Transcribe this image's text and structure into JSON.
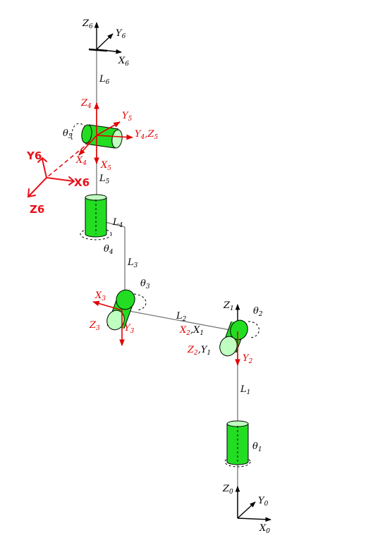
{
  "frames": {
    "f0": {
      "z": "Z",
      "z_sub": "0",
      "y": "Y",
      "y_sub": "0",
      "x": "X",
      "x_sub": "0"
    },
    "f6": {
      "z": "Z",
      "z_sub": "6",
      "y": "Y",
      "y_sub": "6",
      "x": "X",
      "x_sub": "6"
    },
    "f1": {
      "z": "Z",
      "z_sub": "1",
      "x": "X",
      "x_sub": "1",
      "y": "Y",
      "y_sub": "1"
    },
    "f2": {
      "x": "X",
      "x_sub": "2",
      "z": "Z",
      "z_sub": "2",
      "y": "Y",
      "y_sub": "2"
    },
    "f3": {
      "x": "X",
      "x_sub": "3",
      "z": "Z",
      "z_sub": "3",
      "y": "Y",
      "y_sub": "3"
    },
    "f4": {
      "z": "Z",
      "z_sub": "4",
      "x": "X",
      "x_sub": "4",
      "y": "Y",
      "y_sub": "4"
    },
    "f5": {
      "y": "Y",
      "y_sub": "5",
      "x": "X",
      "x_sub": "5",
      "z": "Z",
      "z_sub": "5"
    }
  },
  "links": {
    "l1": {
      "sym": "L",
      "sub": "1"
    },
    "l2": {
      "sym": "L",
      "sub": "2"
    },
    "l3": {
      "sym": "L",
      "sub": "3"
    },
    "l4": {
      "sym": "L",
      "sub": "4"
    },
    "l5": {
      "sym": "L",
      "sub": "5"
    },
    "l6": {
      "sym": "L",
      "sub": "6"
    }
  },
  "joints": {
    "j1": {
      "sym": "θ",
      "sub": "1"
    },
    "j2": {
      "sym": "θ",
      "sub": "2"
    },
    "j3": {
      "sym": "θ",
      "sub": "3"
    },
    "j4": {
      "sym": "θ",
      "sub": "4"
    },
    "j5": {
      "sym": "θ",
      "sub": "5"
    }
  },
  "handwritten": {
    "y6": "Y6",
    "x6": "X6",
    "z6": "Z6"
  },
  "colors": {
    "joint": "#22dd22",
    "cap": "#bfffbf",
    "annotation": "#e00000",
    "link": "#777777"
  }
}
